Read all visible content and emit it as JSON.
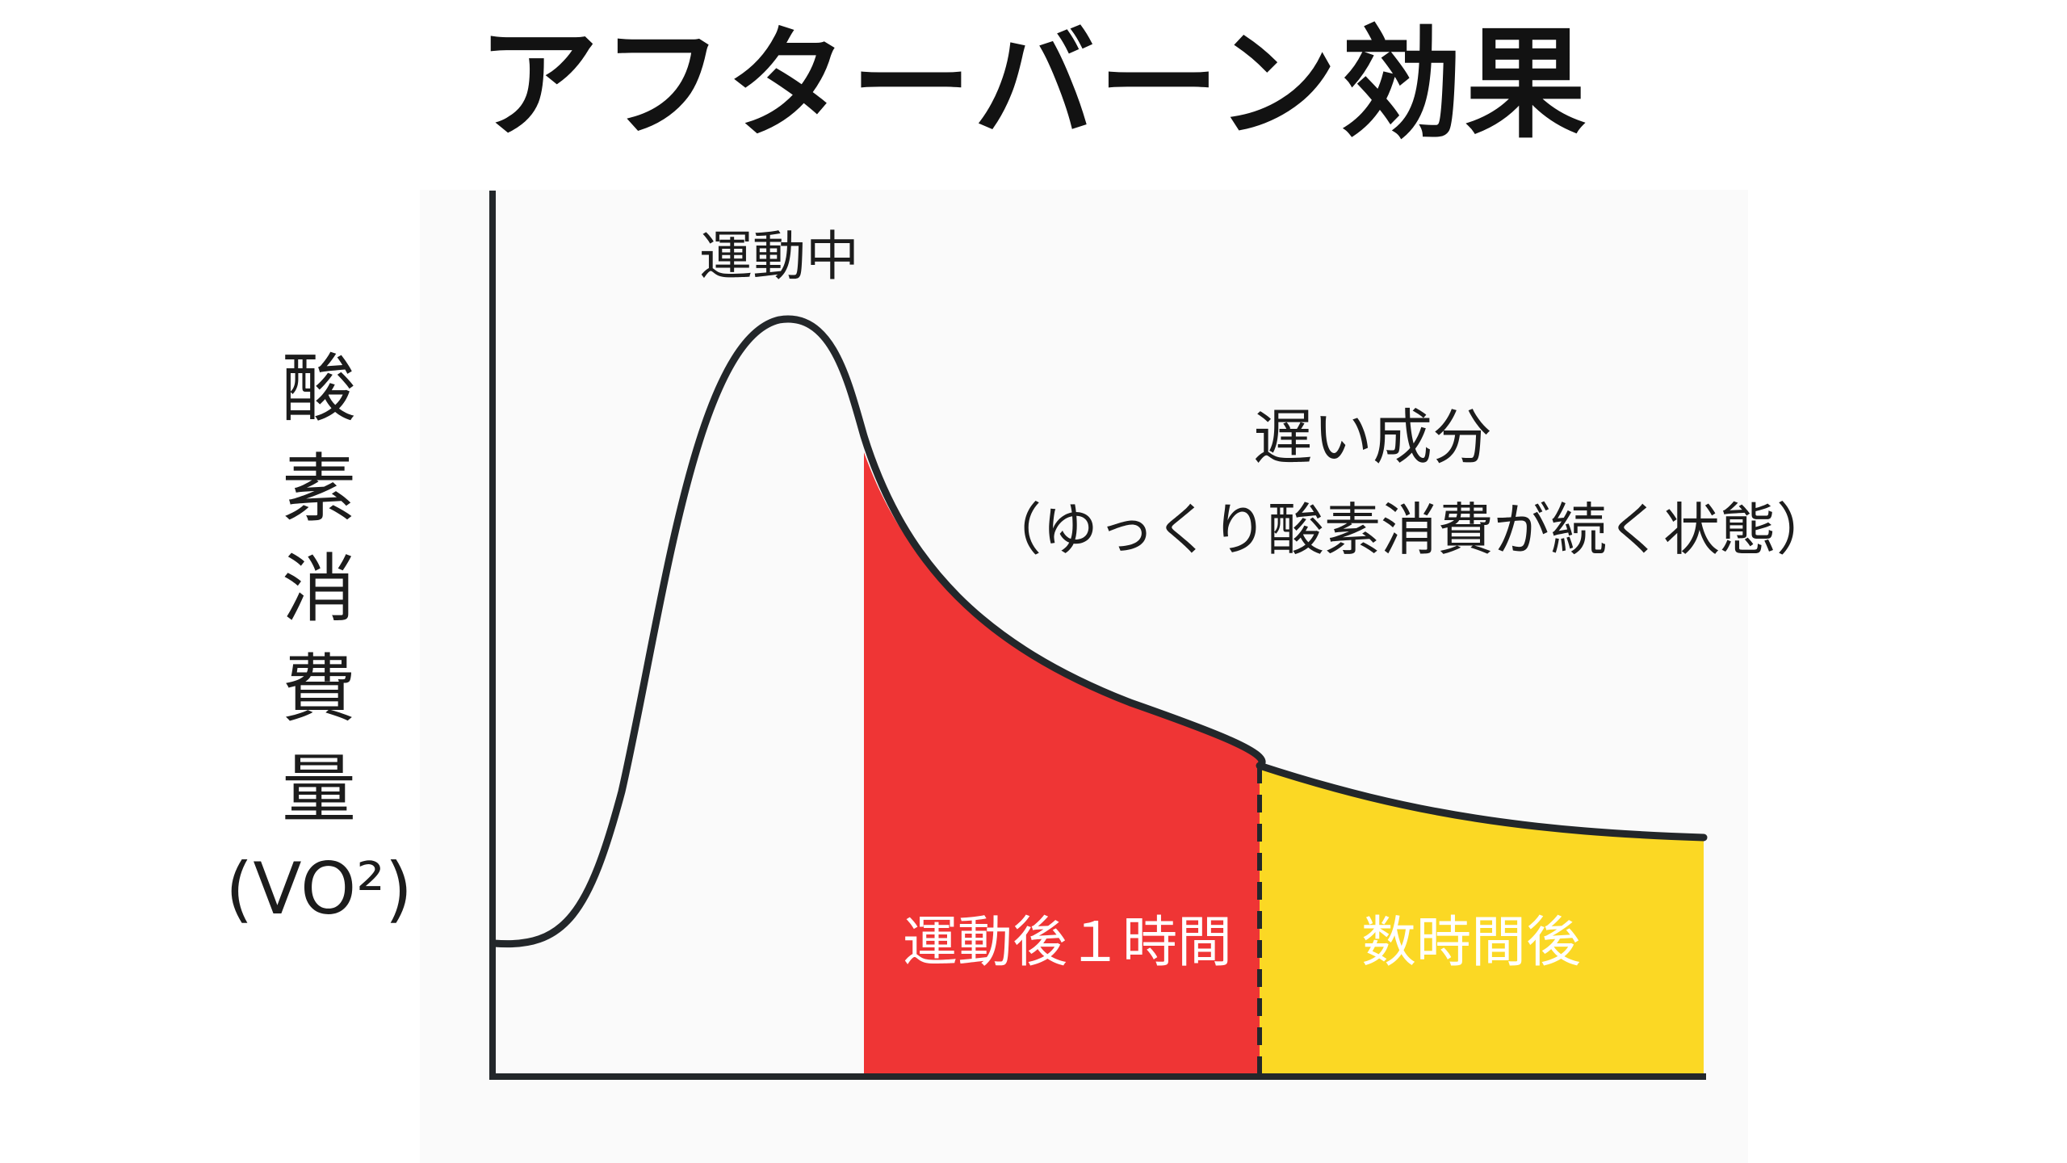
{
  "title": "アフターバーン効果",
  "y_axis": {
    "label_chars": [
      "酸",
      "素",
      "消",
      "費",
      "量"
    ],
    "unit": "(VO²)"
  },
  "annotations": {
    "peak_label": "運動中",
    "slow_component_title": "遅い成分",
    "slow_component_desc": "（ゆっくり酸素消費が続く状態）"
  },
  "regions": [
    {
      "label": "運動後１時間",
      "color": "#ef3535",
      "text_color": "#ffffff"
    },
    {
      "label": "数時間後",
      "color": "#fbd824",
      "text_color": "#ffffff"
    }
  ],
  "colors": {
    "curve": "#23272a",
    "axis": "#23272a",
    "panel_background": "#fafafa"
  }
}
